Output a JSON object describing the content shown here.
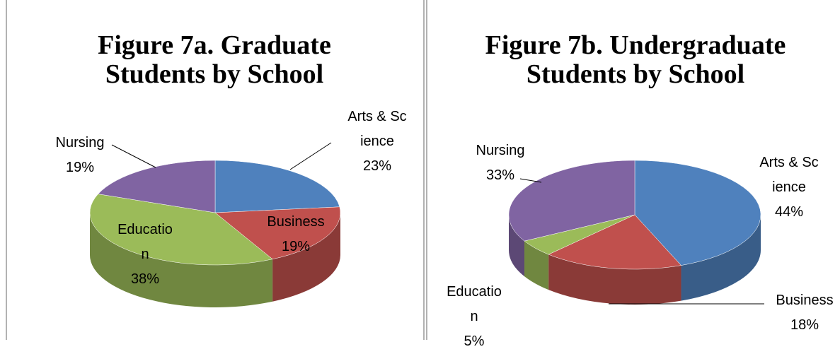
{
  "chart_data": [
    {
      "type": "pie",
      "title": "Figure 7a. Graduate Students by School",
      "categories": [
        "Arts & Science",
        "Business",
        "Education",
        "Nursing"
      ],
      "values": [
        23,
        19,
        38,
        19
      ],
      "value_labels": [
        "23%",
        "19%",
        "38%",
        "19%"
      ],
      "colors": [
        "#4f81bd",
        "#c0504d",
        "#9bbb59",
        "#8064a2"
      ]
    },
    {
      "type": "pie",
      "title": "Figure 7b. Undergraduate Students by School",
      "categories": [
        "Arts & Science",
        "Business",
        "Education",
        "Nursing"
      ],
      "values": [
        44,
        18,
        5,
        33
      ],
      "value_labels": [
        "44%",
        "18%",
        "5%",
        "33%"
      ],
      "colors": [
        "#4f81bd",
        "#c0504d",
        "#9bbb59",
        "#8064a2"
      ]
    }
  ]
}
